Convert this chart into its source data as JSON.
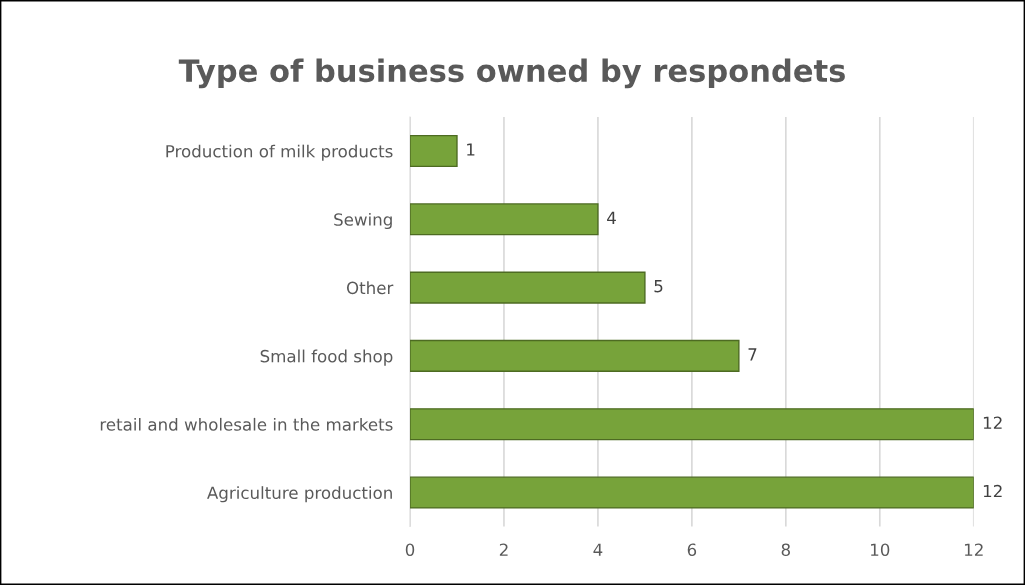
{
  "chart_data": {
    "type": "bar",
    "orientation": "horizontal",
    "title": "Type of business owned by respondets",
    "categories": [
      "Production of milk products",
      "Sewing",
      "Other",
      "Small food shop",
      "retail and wholesale in the markets",
      "Agriculture production"
    ],
    "values": [
      1,
      4,
      5,
      7,
      12,
      12
    ],
    "color": "#77a33a",
    "xlim": [
      0,
      12
    ],
    "xticks": [
      0,
      2,
      4,
      6,
      8,
      10,
      12
    ],
    "grid": "x",
    "data_labels": true,
    "legend": false
  }
}
